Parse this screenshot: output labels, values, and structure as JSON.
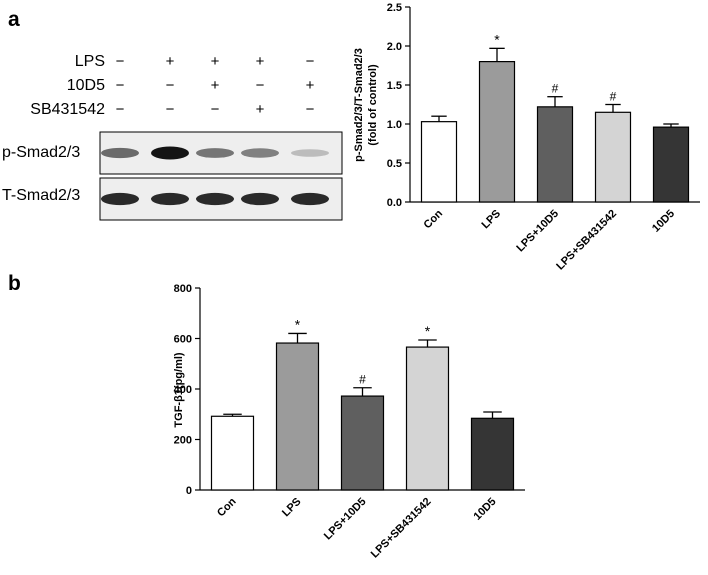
{
  "panels": {
    "a": "a",
    "b": "b"
  },
  "blot": {
    "conditions": [
      {
        "name": "LPS",
        "signs": [
          "−",
          "+",
          "+",
          "+",
          "−"
        ]
      },
      {
        "name": "10D5",
        "signs": [
          "−",
          "−",
          "+",
          "−",
          "+"
        ]
      },
      {
        "name": "SB431542",
        "signs": [
          "−",
          "−",
          "−",
          "+",
          "−"
        ]
      }
    ],
    "rows": [
      {
        "label": "p-Smad2/3",
        "band_intensity": [
          0.6,
          1.0,
          0.55,
          0.5,
          0.22
        ]
      },
      {
        "label": "T-Smad2/3",
        "band_intensity": [
          0.9,
          0.9,
          0.9,
          0.9,
          0.9
        ]
      }
    ]
  },
  "chart_data": [
    {
      "type": "bar",
      "panel": "a",
      "categories": [
        "Con",
        "LPS",
        "LPS+10D5",
        "LPS+SB431542",
        "10D5"
      ],
      "values": [
        1.03,
        1.8,
        1.22,
        1.15,
        0.96
      ],
      "errors": [
        0.07,
        0.17,
        0.13,
        0.1,
        0.04
      ],
      "significance": [
        "",
        "*",
        "#",
        "#",
        ""
      ],
      "colors": [
        "#ffffff",
        "#9b9b9b",
        "#5f5f5f",
        "#d4d4d4",
        "#353535"
      ],
      "title": "",
      "xlabel": "",
      "ylabel": "p-Smad2/3/T-Smad2/3",
      "ylabel2": "(fold of control)",
      "ylim": [
        0,
        2.5
      ],
      "yticks": [
        "0.0",
        "0.5",
        "1.0",
        "1.5",
        "2.0",
        "2.5"
      ],
      "grid": false
    },
    {
      "type": "bar",
      "panel": "b",
      "categories": [
        "Con",
        "LPS",
        "LPS+10D5",
        "LPS+SB431542",
        "10D5"
      ],
      "values": [
        292,
        582,
        372,
        566,
        284
      ],
      "errors": [
        8,
        38,
        33,
        28,
        25
      ],
      "significance": [
        "",
        "*",
        "#",
        "*",
        ""
      ],
      "colors": [
        "#ffffff",
        "#9b9b9b",
        "#5f5f5f",
        "#d4d4d4",
        "#353535"
      ],
      "title": "",
      "xlabel": "",
      "ylabel": "TGF-β1(pg/ml)",
      "ylim": [
        0,
        800
      ],
      "yticks": [
        "0",
        "200",
        "400",
        "600",
        "800"
      ],
      "grid": false
    }
  ]
}
